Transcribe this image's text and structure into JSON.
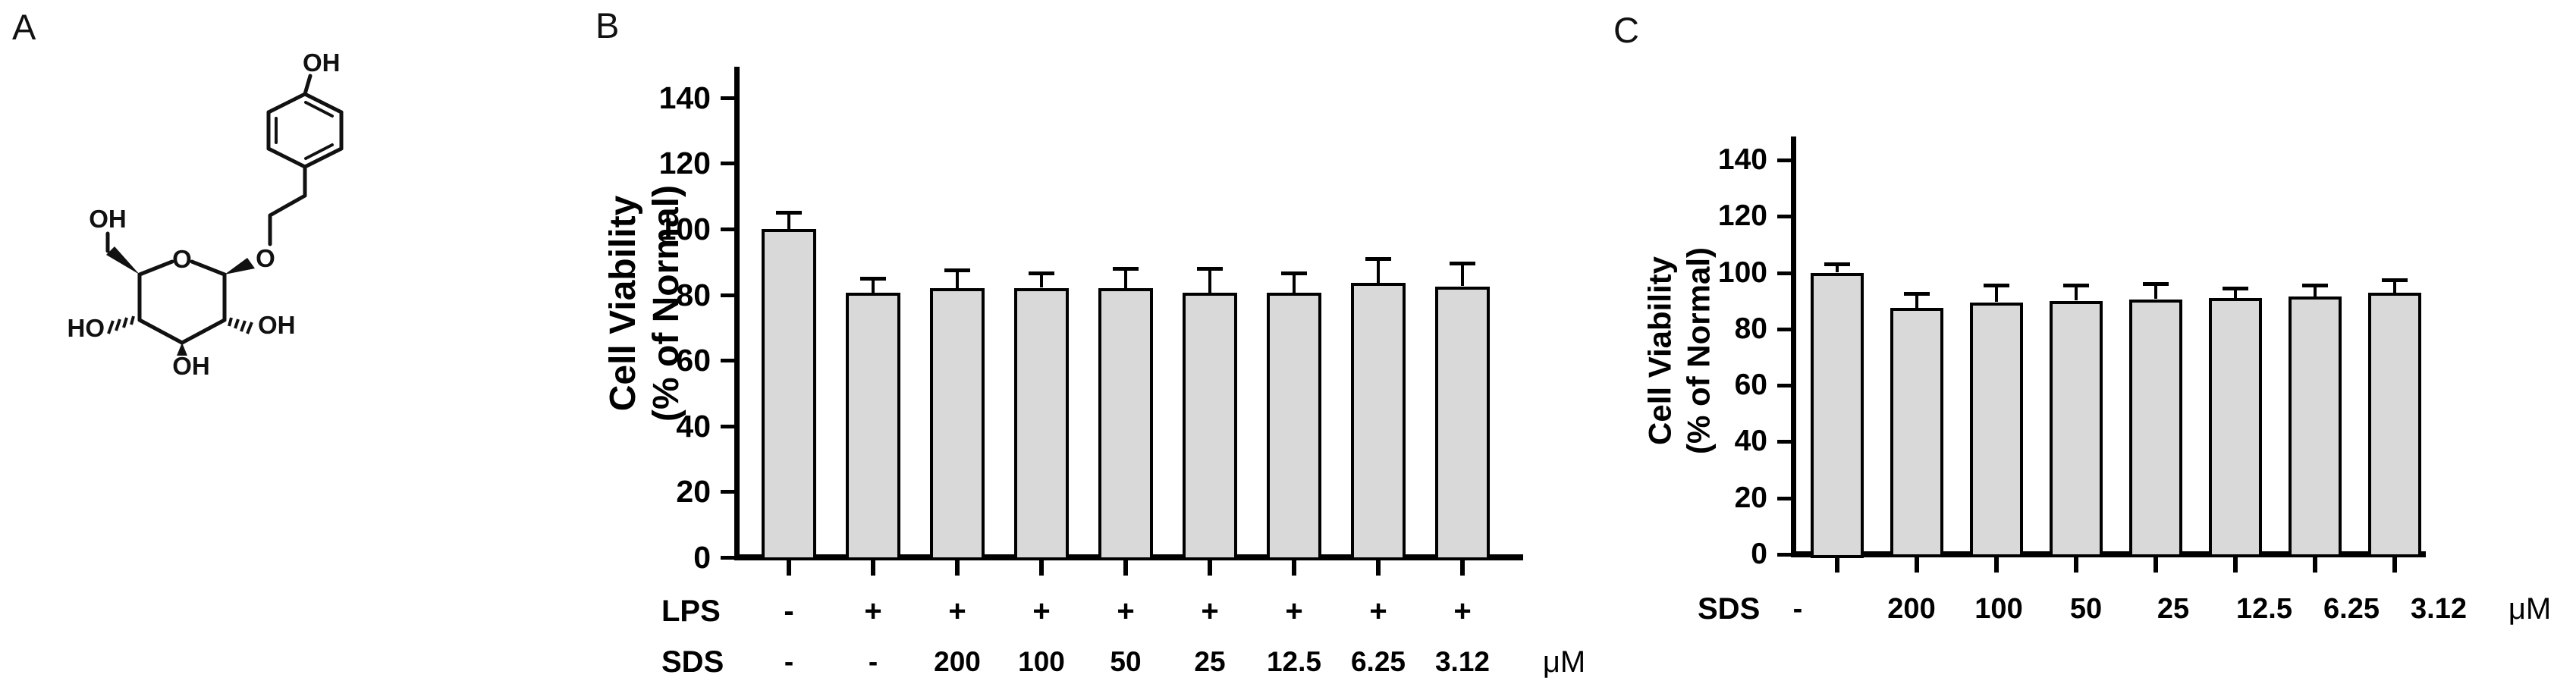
{
  "colors": {
    "background": "#ffffff",
    "bar_fill": "#d9d9d9",
    "bar_edge": "#000000",
    "axis": "#000000"
  },
  "panel_a": {
    "label": "A",
    "atom_labels": {
      "phenol_oh": "OH",
      "chain_o": "O",
      "ring_o": "O",
      "c6_oh": "OH",
      "c4_ho": "HO",
      "c3_oh": "OH",
      "c2_oh": "OH"
    }
  },
  "chart_data": [
    {
      "type": "bar",
      "panel": "B",
      "title": "",
      "ylabel_lines": [
        "Cell Viability",
        "(% of Normal)"
      ],
      "ylim": [
        0,
        150
      ],
      "yticks": [
        0,
        20,
        40,
        60,
        80,
        100,
        120,
        140
      ],
      "grid": false,
      "values": [
        100,
        80.5,
        82,
        82,
        82,
        80.5,
        80.5,
        83.5,
        82.5
      ],
      "errors": [
        5,
        4.5,
        5.5,
        4.5,
        6,
        7.5,
        6,
        7.5,
        7
      ],
      "xrows": [
        {
          "label": "LPS",
          "cells": [
            "-",
            "+",
            "+",
            "+",
            "+",
            "+",
            "+",
            "+",
            "+"
          ],
          "unit": ""
        },
        {
          "label": "SDS",
          "cells": [
            "-",
            "-",
            "200",
            "100",
            "50",
            "25",
            "12.5",
            "6.25",
            "3.12"
          ],
          "unit": "μM"
        }
      ]
    },
    {
      "type": "bar",
      "panel": "C",
      "title": "",
      "ylabel_lines": [
        "Cell Viability",
        "(% of Normal)"
      ],
      "ylim": [
        0,
        150
      ],
      "yticks": [
        0,
        20,
        40,
        60,
        80,
        100,
        120,
        140
      ],
      "grid": false,
      "values": [
        100,
        87.5,
        89.5,
        90,
        90.5,
        91,
        91.5,
        93
      ],
      "errors": [
        3,
        5,
        6,
        5.5,
        5.5,
        3.5,
        4,
        4.5
      ],
      "xrows": [
        {
          "label": "SDS",
          "cells": [
            "-",
            "200",
            "100",
            "50",
            "25",
            "12.5",
            "6.25",
            "3.12"
          ],
          "unit": "μM"
        }
      ]
    }
  ]
}
